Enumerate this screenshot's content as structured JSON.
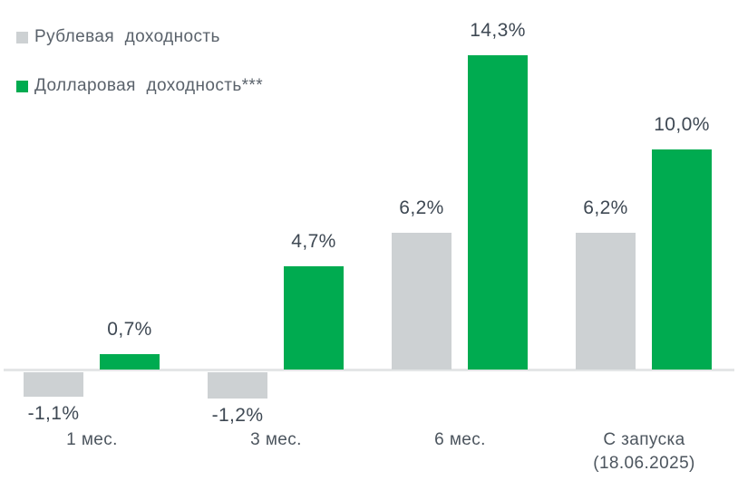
{
  "legend": {
    "items": [
      {
        "key": "ruble",
        "label": "Рублевая доходность",
        "color": "#cdd1d3"
      },
      {
        "key": "dollar",
        "label": "Долларовая доходность***",
        "color": "#00ab50"
      }
    ]
  },
  "chart_data": {
    "type": "bar",
    "title": "",
    "xlabel": "",
    "ylabel": "",
    "categories": [
      {
        "lines": [
          "1 мес."
        ]
      },
      {
        "lines": [
          "3 мес."
        ]
      },
      {
        "lines": [
          "6 мес."
        ]
      },
      {
        "lines": [
          "С запуска",
          "(18.06.2025)"
        ]
      }
    ],
    "series": [
      {
        "key": "ruble",
        "name": "Рублевая доходность",
        "color": "#cdd1d3",
        "values": [
          -1.1,
          -1.2,
          6.2,
          6.2
        ],
        "labels": [
          "-1,1%",
          "-1,2%",
          "6,2%",
          "6,2%"
        ]
      },
      {
        "key": "dollar",
        "name": "Долларовая доходность***",
        "color": "#00ab50",
        "values": [
          0.7,
          4.7,
          14.3,
          10.0
        ],
        "labels": [
          "0,7%",
          "4,7%",
          "14,3%",
          "10,0%"
        ]
      }
    ],
    "ylim": [
      -1.5,
      15
    ],
    "grid": false,
    "axis_color": "#e4e6e7",
    "label_color": "#3e4853",
    "legend_position": "top-left"
  }
}
